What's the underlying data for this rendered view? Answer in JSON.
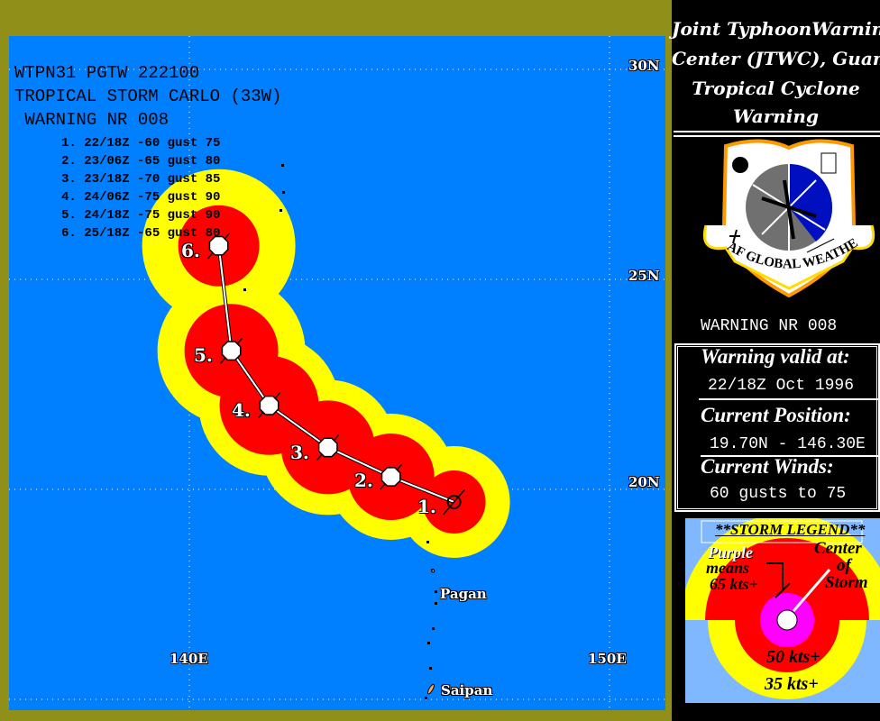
{
  "header": {
    "line1": "WTPN31 PGTW 222100",
    "line2": "TROPICAL STORM CARLO (33W)",
    "line3": " WARNING NR 008"
  },
  "forecasts": [
    {
      "label": "1. 22/18Z -60 gust 75",
      "marker": "1.",
      "lat": 19.7,
      "lon": 146.3,
      "wind": 60,
      "gust": 75
    },
    {
      "label": "2. 23/06Z -65 gust 80",
      "marker": "2.",
      "lat": 20.3,
      "lon": 144.8,
      "wind": 65,
      "gust": 80
    },
    {
      "label": "3. 23/18Z -70 gust 85",
      "marker": "3.",
      "lat": 21.0,
      "lon": 143.3,
      "wind": 70,
      "gust": 85
    },
    {
      "label": "4. 24/06Z -75 gust 90",
      "marker": "4.",
      "lat": 22.0,
      "lon": 141.9,
      "wind": 75,
      "gust": 90
    },
    {
      "label": "5. 24/18Z -75 gust 90",
      "marker": "5.",
      "lat": 23.3,
      "lon": 141.0,
      "wind": 75,
      "gust": 90
    },
    {
      "label": "6. 25/18Z -65 gust 80",
      "marker": "6.",
      "lat": 25.8,
      "lon": 140.7,
      "wind": 65,
      "gust": 80
    }
  ],
  "grid": {
    "lat_labels": [
      {
        "lat": 30,
        "text": "30N"
      },
      {
        "lat": 25,
        "text": "25N"
      },
      {
        "lat": 20,
        "text": "20N"
      }
    ],
    "lon_labels": [
      {
        "lon": 140,
        "text": "140E"
      },
      {
        "lon": 150,
        "text": "150E"
      }
    ]
  },
  "places": [
    {
      "name": "Pagan",
      "lat": 18.1,
      "lon": 145.8
    },
    {
      "name": "Saipan",
      "lat": 15.2,
      "lon": 145.75
    }
  ],
  "colors": {
    "ocean": "#0080ff",
    "frame": "#8f8f1a",
    "gale": "#ffff00",
    "storm": "#ff0000",
    "typhoon": "#ff00ff",
    "legend_bg": "#80b8ff"
  },
  "panel": {
    "title": [
      "Joint TyphoonWarning",
      "Center (JTWC), Guam",
      "Tropical Cyclone",
      "Warning"
    ],
    "logo_text": "AF GLOBAL WEATHER CENTER",
    "warning_nr": "WARNING NR 008",
    "valid_label": "Warning valid at:",
    "valid_value": "22/18Z Oct 1996",
    "position_label": "Current Position:",
    "position_value": "19.70N - 146.30E",
    "winds_label": "Current Winds:",
    "winds_value": "60 gusts to 75"
  },
  "legend": {
    "title": "**STORM LEGEND**",
    "purple": "Purple",
    "means": "means",
    "kts65": "65 kts+",
    "center1": "Center",
    "center2": "of",
    "center3": "Storm",
    "kts50": "50 kts+",
    "kts35": "35 kts+"
  }
}
